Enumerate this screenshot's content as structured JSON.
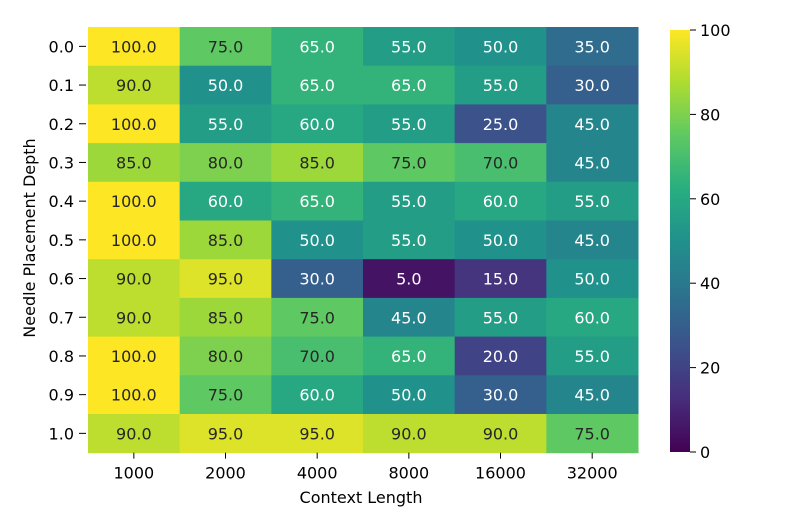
{
  "chart_data": {
    "type": "heatmap",
    "title": "",
    "xlabel": "Context Length",
    "ylabel": "Needle Placement Depth",
    "x_categories": [
      "1000",
      "2000",
      "4000",
      "8000",
      "16000",
      "32000"
    ],
    "y_categories": [
      "0.0",
      "0.1",
      "0.2",
      "0.3",
      "0.4",
      "0.5",
      "0.6",
      "0.7",
      "0.8",
      "0.9",
      "1.0"
    ],
    "values": [
      [
        100,
        75,
        65,
        55,
        50,
        35
      ],
      [
        90,
        50,
        65,
        65,
        55,
        30
      ],
      [
        100,
        55,
        60,
        55,
        25,
        45
      ],
      [
        85,
        80,
        85,
        75,
        70,
        45
      ],
      [
        100,
        60,
        65,
        55,
        60,
        55
      ],
      [
        100,
        85,
        50,
        55,
        50,
        45
      ],
      [
        90,
        95,
        30,
        5,
        15,
        50
      ],
      [
        90,
        85,
        75,
        45,
        55,
        60
      ],
      [
        100,
        80,
        70,
        65,
        20,
        55
      ],
      [
        100,
        75,
        60,
        50,
        30,
        45
      ],
      [
        90,
        95,
        95,
        90,
        90,
        75
      ]
    ],
    "value_format": "0.0",
    "colormap": "viridis",
    "vmin": 0,
    "vmax": 100,
    "colorbar_ticks": [
      0,
      20,
      40,
      60,
      80,
      100
    ]
  }
}
